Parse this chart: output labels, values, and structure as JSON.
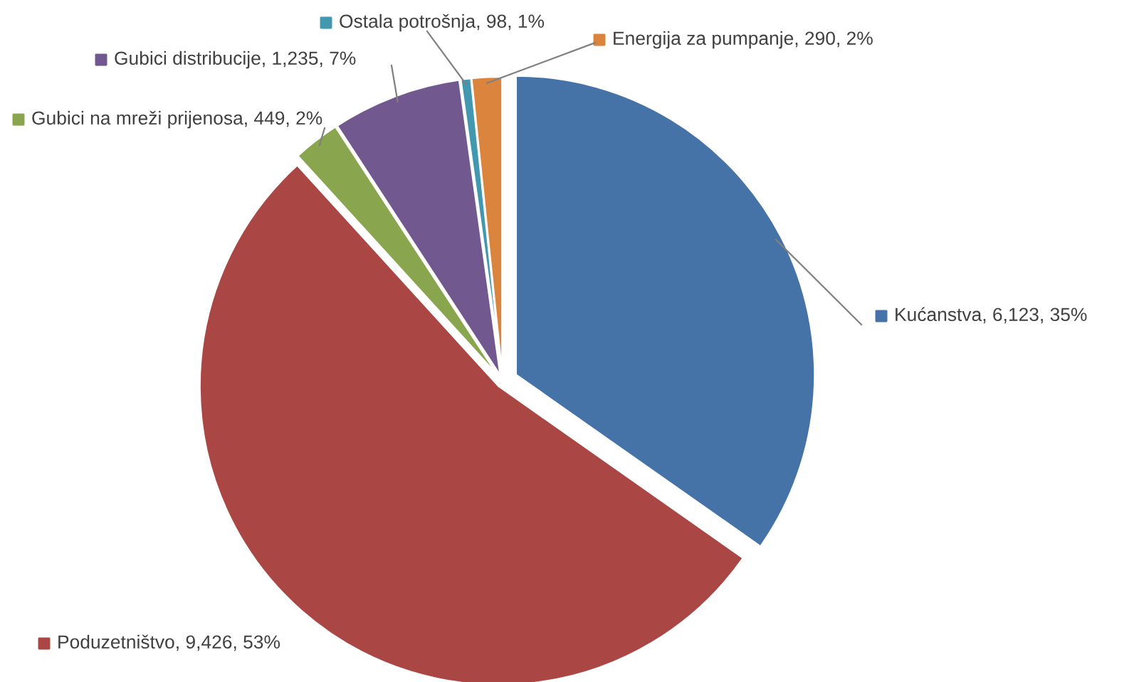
{
  "chart_data": {
    "type": "pie",
    "categories": [
      "Kućanstva",
      "Poduzetništvo",
      "Gubici na mreži prijenosa",
      "Gubici distribucije",
      "Ostala potrošnja",
      "Energija za pumpanje"
    ],
    "values": [
      6123,
      9426,
      449,
      1235,
      98,
      290
    ],
    "value_labels": [
      "6,123, 35%",
      "9,426, 53%",
      "449, 2%",
      "1,235, 7%",
      "98, 1%",
      "290, 2%"
    ],
    "colors": [
      "#4572a7",
      "#aa4643",
      "#89a54e",
      "#71588f",
      "#4198af",
      "#db843d"
    ],
    "legend": "top right"
  }
}
